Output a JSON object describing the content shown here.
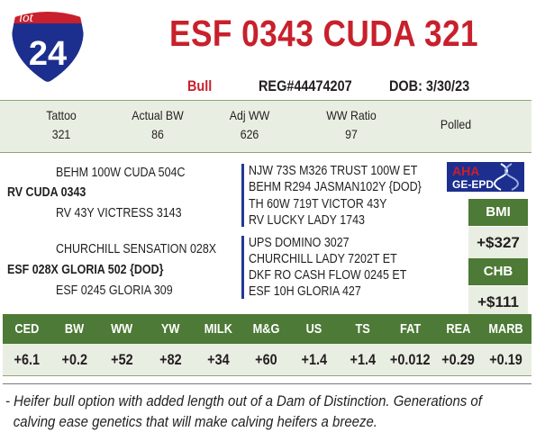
{
  "lot": {
    "label": "lot",
    "number": "24"
  },
  "animal": {
    "name": "ESF 0343 CUDA 321",
    "sex": "Bull",
    "registration": "REG#44474207",
    "dob": "DOB: 3/30/23"
  },
  "info": [
    {
      "label": "Tattoo",
      "value": "321"
    },
    {
      "label": "Actual BW",
      "value": "86"
    },
    {
      "label": "Adj WW",
      "value": "626"
    },
    {
      "label": "WW Ratio",
      "value": "97"
    },
    {
      "label": "Polled",
      "value": ""
    }
  ],
  "pedigree": {
    "sire_sire": "BEHM 100W CUDA 504C",
    "sire": "RV CUDA 0343",
    "sire_dam": "RV 43Y VICTRESS 3143",
    "dam_sire": "CHURCHILL SENSATION 028X",
    "dam": "ESF 028X GLORIA 502 {DOD}",
    "dam_dam": "ESF 0245 GLORIA 309",
    "sire_line": [
      "NJW 73S M326 TRUST 100W ET",
      "BEHM R294 JASMAN102Y {DOD}",
      "TH 60W 719T VICTOR 43Y",
      "RV LUCKY LADY 1743"
    ],
    "dam_line": [
      "UPS DOMINO 3027",
      "CHURCHILL LADY 7202T ET",
      "DKF RO CASH FLOW 0245 ET",
      "ESF 10H GLORIA 427"
    ]
  },
  "logo": {
    "top": "AHA",
    "bottom": "GE-EPD"
  },
  "indexes": [
    {
      "label": "BMI",
      "value": "+$327"
    },
    {
      "label": "CHB",
      "value": "+$111"
    }
  ],
  "epds": {
    "labels": [
      "CED",
      "BW",
      "WW",
      "YW",
      "MILK",
      "M&G",
      "US",
      "TS",
      "FAT",
      "REA",
      "MARB"
    ],
    "values": [
      "+6.1",
      "+0.2",
      "+52",
      "+82",
      "+34",
      "+60",
      "+1.4",
      "+1.4",
      "+0.012",
      "+0.29",
      "+0.19"
    ]
  },
  "note": {
    "line1": "- Heifer bull option with added length out of a Dam of Distinction.  Generations of",
    "line2": "calving ease genetics that will make calving heifers a breeze."
  },
  "colors": {
    "red": "#c8202c",
    "green": "#4d7a36",
    "light": "#e9eee2",
    "navy": "#1f3a93"
  }
}
